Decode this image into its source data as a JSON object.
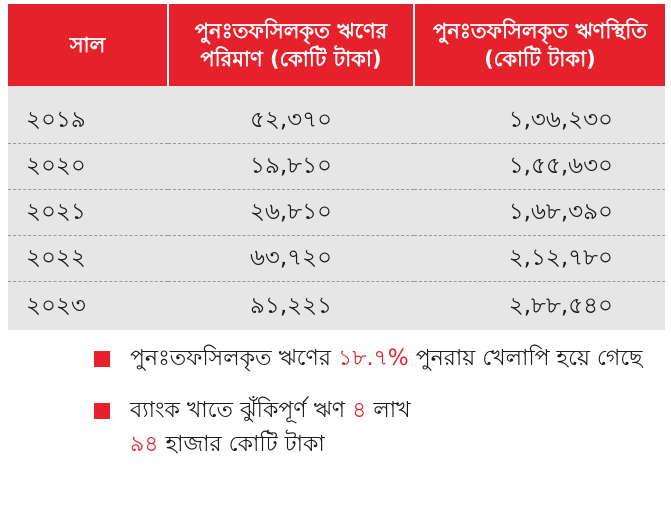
{
  "chart_data": {
    "type": "table",
    "columns": [
      "সাল",
      "পুনঃতফসিলকৃত ঋণের পরিমাণ (কোটি টাকা)",
      "পুনঃতফসিলকৃত ঋণস্থিতি (কোটি টাকা)"
    ],
    "rows": [
      {
        "year": "২০১৯",
        "rescheduled": "৫২,৩৭০",
        "outstanding": "১,৩৬,২৩০"
      },
      {
        "year": "২০২০",
        "rescheduled": "১৯,৮১০",
        "outstanding": "১,৫৫,৬৩০"
      },
      {
        "year": "২০২১",
        "rescheduled": "২৬,৮১০",
        "outstanding": "১,৬৮,৩৯০"
      },
      {
        "year": "২০২২",
        "rescheduled": "৬৩,৭২০",
        "outstanding": "২,১২,৭৮০"
      },
      {
        "year": "২০২৩",
        "rescheduled": "৯১,২২১",
        "outstanding": "২,৮৮,৫৪০"
      }
    ],
    "x": [
      2019,
      2020,
      2021,
      2022,
      2023
    ],
    "series": [
      {
        "name": "পুনঃতফসিলকৃত ঋণের পরিমাণ (কোটি টাকা)",
        "values": [
          52370,
          19810,
          26810,
          63720,
          91221
        ]
      },
      {
        "name": "পুনঃতফসিলকৃত ঋণস্থিতি (কোটি টাকা)",
        "values": [
          136230,
          155630,
          168390,
          212780,
          288540
        ]
      }
    ]
  },
  "notes": [
    {
      "pre": "পুনঃতফসিলকৃত ঋণের ",
      "highlight": "১৮.৭%",
      "post": " পুনরায় খেলাপি হয়ে গেছে"
    },
    {
      "pre": "ব্যাংক খাতে ঝুঁকিপূর্ণ ঋণ ",
      "highlight": "৪",
      "mid": " লাখ ",
      "highlight2": "৯৪",
      "post": " হাজার কোটি টাকা"
    }
  ],
  "colors": {
    "accent": "#e5212b",
    "row_bg": "#e6e6e6"
  }
}
